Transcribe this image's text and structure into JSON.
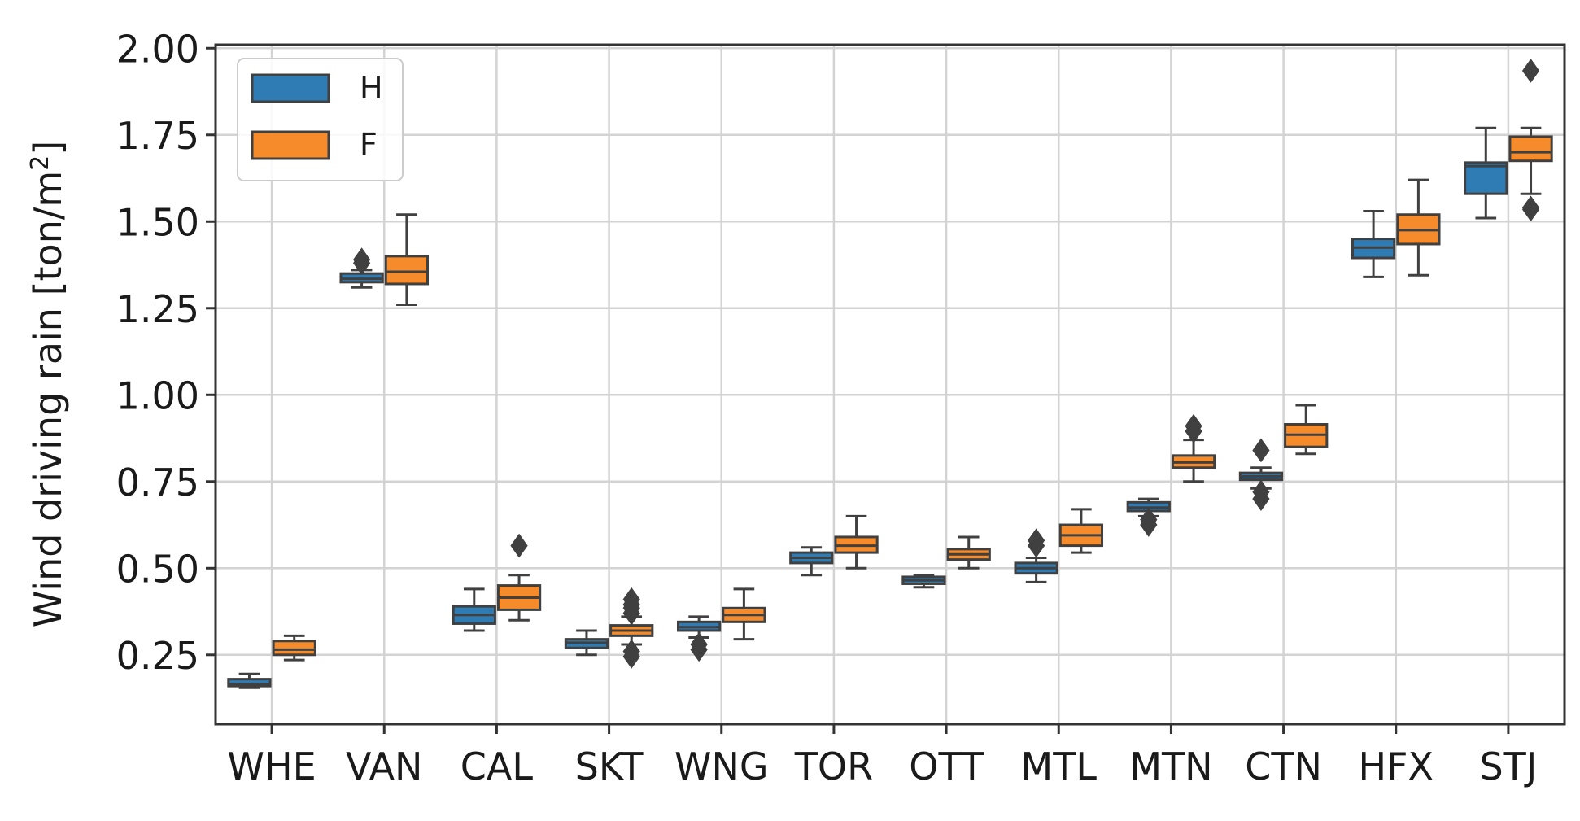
{
  "chart_data": {
    "type": "box",
    "title": "",
    "xlabel": "",
    "ylabel": "Wind driving rain [ton/m",
    "ylabel_sup": "2",
    "ylabel_suffix": "]",
    "ylim": [
      0.05,
      2.01
    ],
    "yticks": [
      0.25,
      0.5,
      0.75,
      1.0,
      1.25,
      1.5,
      1.75,
      2.0
    ],
    "ytick_labels": [
      "0.25",
      "0.50",
      "0.75",
      "1.00",
      "1.25",
      "1.50",
      "1.75",
      "2.00"
    ],
    "grid": true,
    "legend_position": "top-left",
    "categories": [
      "WHE",
      "VAN",
      "CAL",
      "SKT",
      "WNG",
      "TOR",
      "OTT",
      "MTL",
      "MTN",
      "CTN",
      "HFX",
      "STJ"
    ],
    "series": [
      {
        "name": "H",
        "color": "#2f7bb3",
        "boxes": [
          {
            "whislo": 0.155,
            "q1": 0.16,
            "med": 0.165,
            "q3": 0.18,
            "whishi": 0.195,
            "fliers": []
          },
          {
            "whislo": 1.31,
            "q1": 1.325,
            "med": 1.335,
            "q3": 1.35,
            "whishi": 1.36,
            "fliers": [
              1.38,
              1.39
            ]
          },
          {
            "whislo": 0.32,
            "q1": 0.34,
            "med": 0.365,
            "q3": 0.39,
            "whishi": 0.44,
            "fliers": []
          },
          {
            "whislo": 0.25,
            "q1": 0.27,
            "med": 0.285,
            "q3": 0.295,
            "whishi": 0.32,
            "fliers": []
          },
          {
            "whislo": 0.3,
            "q1": 0.32,
            "med": 0.33,
            "q3": 0.345,
            "whishi": 0.36,
            "fliers": [
              0.28,
              0.265
            ]
          },
          {
            "whislo": 0.48,
            "q1": 0.515,
            "med": 0.53,
            "q3": 0.545,
            "whishi": 0.56,
            "fliers": []
          },
          {
            "whislo": 0.445,
            "q1": 0.455,
            "med": 0.465,
            "q3": 0.475,
            "whishi": 0.48,
            "fliers": []
          },
          {
            "whislo": 0.46,
            "q1": 0.485,
            "med": 0.5,
            "q3": 0.515,
            "whishi": 0.53,
            "fliers": [
              0.565,
              0.58
            ]
          },
          {
            "whislo": 0.65,
            "q1": 0.665,
            "med": 0.675,
            "q3": 0.69,
            "whishi": 0.7,
            "fliers": [
              0.64,
              0.625
            ]
          },
          {
            "whislo": 0.73,
            "q1": 0.755,
            "med": 0.765,
            "q3": 0.775,
            "whishi": 0.79,
            "fliers": [
              0.72,
              0.7,
              0.84
            ]
          },
          {
            "whislo": 1.34,
            "q1": 1.395,
            "med": 1.425,
            "q3": 1.45,
            "whishi": 1.53,
            "fliers": []
          },
          {
            "whislo": 1.51,
            "q1": 1.58,
            "med": 1.66,
            "q3": 1.67,
            "whishi": 1.77,
            "fliers": []
          }
        ]
      },
      {
        "name": "F",
        "color": "#f58b2a",
        "boxes": [
          {
            "whislo": 0.235,
            "q1": 0.25,
            "med": 0.265,
            "q3": 0.29,
            "whishi": 0.305,
            "fliers": []
          },
          {
            "whislo": 1.26,
            "q1": 1.32,
            "med": 1.355,
            "q3": 1.4,
            "whishi": 1.52,
            "fliers": []
          },
          {
            "whislo": 0.35,
            "q1": 0.38,
            "med": 0.415,
            "q3": 0.45,
            "whishi": 0.48,
            "fliers": [
              0.565
            ]
          },
          {
            "whislo": 0.28,
            "q1": 0.305,
            "med": 0.32,
            "q3": 0.335,
            "whishi": 0.36,
            "fliers": [
              0.37,
              0.385,
              0.395,
              0.41,
              0.26,
              0.245
            ]
          },
          {
            "whislo": 0.295,
            "q1": 0.345,
            "med": 0.365,
            "q3": 0.385,
            "whishi": 0.44,
            "fliers": []
          },
          {
            "whislo": 0.5,
            "q1": 0.545,
            "med": 0.565,
            "q3": 0.59,
            "whishi": 0.65,
            "fliers": []
          },
          {
            "whislo": 0.5,
            "q1": 0.525,
            "med": 0.54,
            "q3": 0.555,
            "whishi": 0.59,
            "fliers": []
          },
          {
            "whislo": 0.545,
            "q1": 0.565,
            "med": 0.595,
            "q3": 0.625,
            "whishi": 0.67,
            "fliers": []
          },
          {
            "whislo": 0.75,
            "q1": 0.79,
            "med": 0.805,
            "q3": 0.825,
            "whishi": 0.87,
            "fliers": [
              0.895,
              0.91
            ]
          },
          {
            "whislo": 0.83,
            "q1": 0.85,
            "med": 0.885,
            "q3": 0.915,
            "whishi": 0.97,
            "fliers": []
          },
          {
            "whislo": 1.345,
            "q1": 1.435,
            "med": 1.475,
            "q3": 1.52,
            "whishi": 1.62,
            "fliers": []
          },
          {
            "whislo": 1.58,
            "q1": 1.675,
            "med": 1.7,
            "q3": 1.745,
            "whishi": 1.77,
            "fliers": [
              1.935,
              1.54,
              1.535
            ]
          }
        ]
      }
    ]
  }
}
